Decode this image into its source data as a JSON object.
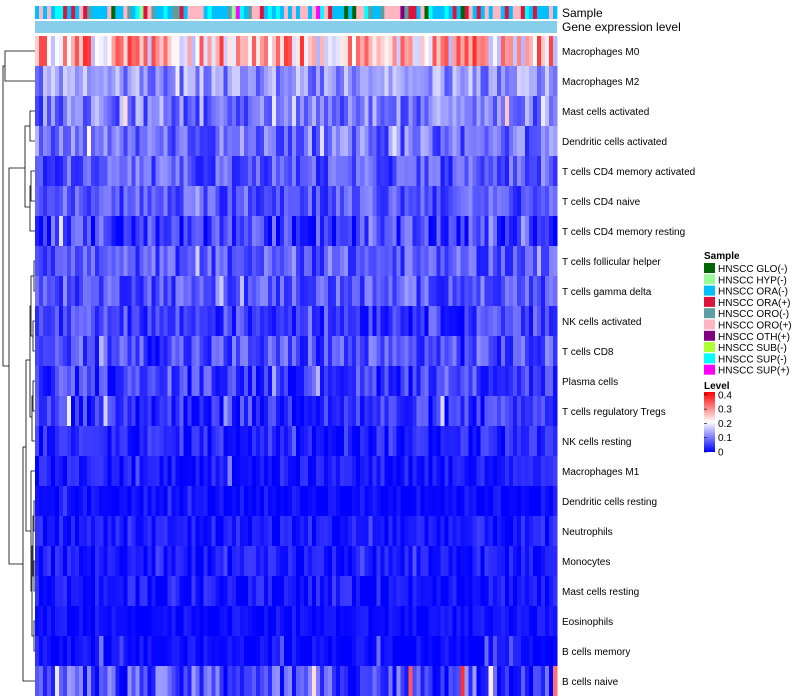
{
  "chart_data": {
    "type": "heatmap",
    "title": "",
    "n_columns": 130,
    "rows": [
      {
        "label": "Macrophages M0",
        "mean": 0.27,
        "spread": 0.12,
        "spike": 0.2
      },
      {
        "label": "Macrophages M2",
        "mean": 0.12,
        "spread": 0.06,
        "spike": 0.1
      },
      {
        "label": "Mast cells activated",
        "mean": 0.1,
        "spread": 0.07,
        "spike": 0.18
      },
      {
        "label": "Dendritic cells activated",
        "mean": 0.09,
        "spread": 0.06,
        "spike": 0.12
      },
      {
        "label": "T cells CD4 memory activated",
        "mean": 0.07,
        "spread": 0.05,
        "spike": 0.06
      },
      {
        "label": "T cells CD4 naive",
        "mean": 0.07,
        "spread": 0.05,
        "spike": 0.08
      },
      {
        "label": "T cells CD4 memory resting",
        "mean": 0.05,
        "spread": 0.06,
        "spike": 0.1
      },
      {
        "label": "T cells follicular helper",
        "mean": 0.07,
        "spread": 0.05,
        "spike": 0.06
      },
      {
        "label": "T cells gamma delta",
        "mean": 0.07,
        "spread": 0.05,
        "spike": 0.06
      },
      {
        "label": "NK cells activated",
        "mean": 0.05,
        "spread": 0.05,
        "spike": 0.06
      },
      {
        "label": "T cells CD8",
        "mean": 0.06,
        "spread": 0.06,
        "spike": 0.12
      },
      {
        "label": "Plasma cells",
        "mean": 0.05,
        "spread": 0.05,
        "spike": 0.06
      },
      {
        "label": "T cells regulatory  Tregs",
        "mean": 0.04,
        "spread": 0.05,
        "spike": 0.14
      },
      {
        "label": "NK cells resting",
        "mean": 0.03,
        "spread": 0.04,
        "spike": 0.06
      },
      {
        "label": "Macrophages M1",
        "mean": 0.02,
        "spread": 0.03,
        "spike": 0.06
      },
      {
        "label": "Dendritic cells resting",
        "mean": 0.01,
        "spread": 0.02,
        "spike": 0.04
      },
      {
        "label": "Neutrophils",
        "mean": 0.02,
        "spread": 0.03,
        "spike": 0.08
      },
      {
        "label": "Monocytes",
        "mean": 0.02,
        "spread": 0.03,
        "spike": 0.06
      },
      {
        "label": "Mast cells resting",
        "mean": 0.02,
        "spread": 0.03,
        "spike": 0.05
      },
      {
        "label": "Eosinophils",
        "mean": 0.01,
        "spread": 0.02,
        "spike": 0.06
      },
      {
        "label": "B cells memory",
        "mean": 0.01,
        "spread": 0.02,
        "spike": 0.08
      },
      {
        "label": "B cells naive",
        "mean": 0.06,
        "spread": 0.07,
        "spike": 0.4
      }
    ],
    "annotation_tracks": [
      {
        "label": "Sample"
      },
      {
        "label": "Gene expression level"
      }
    ],
    "sample_legend": {
      "title": "Sample",
      "entries": [
        {
          "label": "HNSCC GLO(-)",
          "color": "#006400"
        },
        {
          "label": "HNSCC HYP(-)",
          "color": "#98FB98"
        },
        {
          "label": "HNSCC ORA(-)",
          "color": "#00BFFF"
        },
        {
          "label": "HNSCC ORA(+)",
          "color": "#DC143C"
        },
        {
          "label": "HNSCC ORO(-)",
          "color": "#5F9EA0"
        },
        {
          "label": "HNSCC ORO(+)",
          "color": "#FFB6C1"
        },
        {
          "label": "HNSCC OTH(+)",
          "color": "#800080"
        },
        {
          "label": "HNSCC SUB(-)",
          "color": "#ADFF2F"
        },
        {
          "label": "HNSCC SUP(-)",
          "color": "#00FFFF"
        },
        {
          "label": "HNSCC SUP(+)",
          "color": "#FF00FF"
        }
      ]
    },
    "level_legend": {
      "title": "Level",
      "ticks": [
        "0.4",
        "0.3",
        "0.2",
        "0.1",
        "0"
      ],
      "tick_values": [
        0.4,
        0.3,
        0.2,
        0.1,
        0
      ],
      "range": [
        0,
        0.42
      ],
      "colors": [
        "#0000FF",
        "#FFFFFF",
        "#FF0000"
      ]
    },
    "gene_expression_track_color": "#87CEEB"
  }
}
